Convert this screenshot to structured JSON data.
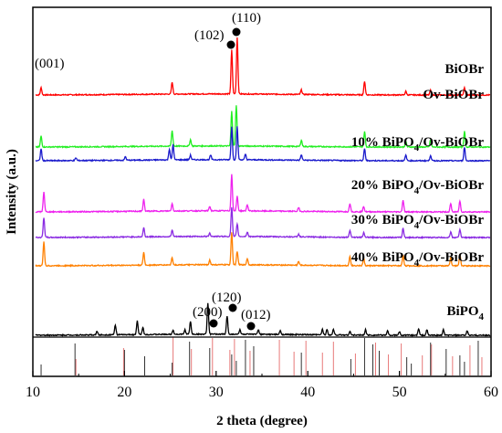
{
  "chart_data": {
    "type": "line",
    "xlabel": "2 theta (degree)",
    "ylabel": "Intensity (a.u.)",
    "xlim": [
      10,
      60
    ],
    "x_ticks": [
      10,
      20,
      30,
      40,
      50,
      60
    ],
    "y_ticks_shown": false,
    "grid": false,
    "series": [
      {
        "name": "BiOBr",
        "color": "#ff0000",
        "peaks": [
          [
            10.9,
            8
          ],
          [
            25.2,
            13
          ],
          [
            31.7,
            48
          ],
          [
            32.3,
            62
          ],
          [
            39.3,
            5
          ],
          [
            46.2,
            15
          ],
          [
            50.7,
            4
          ],
          [
            53.4,
            5
          ],
          [
            57.1,
            8
          ]
        ]
      },
      {
        "name": "Ov-BiOBr",
        "color": "#22ee22",
        "peaks": [
          [
            10.9,
            12
          ],
          [
            25.2,
            17
          ],
          [
            27.2,
            7
          ],
          [
            31.7,
            38
          ],
          [
            32.2,
            45
          ],
          [
            39.3,
            7
          ],
          [
            46.2,
            17
          ],
          [
            50.7,
            6
          ],
          [
            53.4,
            8
          ],
          [
            57.1,
            17
          ]
        ]
      },
      {
        "name": "10% BiPO",
        "sub": "4",
        "suffix": "/Ov-BiOBr",
        "color": "#1a1acc",
        "peaks": [
          [
            10.9,
            13
          ],
          [
            14.7,
            3
          ],
          [
            20.1,
            4
          ],
          [
            24.9,
            12
          ],
          [
            25.3,
            17
          ],
          [
            27.2,
            5
          ],
          [
            29.4,
            5
          ],
          [
            31.7,
            36
          ],
          [
            32.3,
            36
          ],
          [
            33.2,
            6
          ],
          [
            39.3,
            6
          ],
          [
            46.2,
            13
          ],
          [
            50.7,
            6
          ],
          [
            53.4,
            6
          ],
          [
            57.1,
            15
          ]
        ]
      },
      {
        "name": "20% BiPO",
        "sub": "4",
        "suffix": "/Ov-BiOBr",
        "color": "#ee22ee",
        "peaks": [
          [
            11.2,
            22
          ],
          [
            22.1,
            13
          ],
          [
            25.2,
            8
          ],
          [
            29.3,
            5
          ],
          [
            31.7,
            40
          ],
          [
            32.3,
            16
          ],
          [
            33.4,
            7
          ],
          [
            39.0,
            4
          ],
          [
            44.6,
            9
          ],
          [
            46.1,
            6
          ],
          [
            50.4,
            13
          ],
          [
            55.6,
            9
          ],
          [
            56.6,
            12
          ]
        ]
      },
      {
        "name": "30% BiPO",
        "sub": "4",
        "suffix": "/Ov-BiOBr",
        "color": "#8a2be2",
        "peaks": [
          [
            11.2,
            22
          ],
          [
            22.1,
            10
          ],
          [
            25.2,
            7
          ],
          [
            29.3,
            4
          ],
          [
            31.7,
            32
          ],
          [
            32.3,
            14
          ],
          [
            33.4,
            5
          ],
          [
            39.0,
            3
          ],
          [
            44.6,
            8
          ],
          [
            46.1,
            5
          ],
          [
            50.4,
            10
          ],
          [
            55.6,
            6
          ],
          [
            56.6,
            9
          ]
        ]
      },
      {
        "name": "40% BiPO",
        "sub": "4",
        "suffix": "/Ov-BiOBr",
        "color": "#ff8000",
        "peaks": [
          [
            11.2,
            26
          ],
          [
            22.1,
            14
          ],
          [
            25.2,
            8
          ],
          [
            29.3,
            5
          ],
          [
            31.7,
            36
          ],
          [
            32.3,
            15
          ],
          [
            33.4,
            7
          ],
          [
            39.0,
            4
          ],
          [
            44.6,
            10
          ],
          [
            46.1,
            8
          ],
          [
            50.4,
            12
          ],
          [
            55.6,
            9
          ],
          [
            56.6,
            13
          ]
        ]
      },
      {
        "name": "BiPO",
        "sub": "4",
        "suffix": "",
        "color": "#000000",
        "peaks": [
          [
            17.0,
            4
          ],
          [
            19.0,
            11
          ],
          [
            21.4,
            15
          ],
          [
            22.0,
            8
          ],
          [
            25.3,
            5
          ],
          [
            26.6,
            5
          ],
          [
            27.2,
            14
          ],
          [
            29.1,
            34
          ],
          [
            31.2,
            20
          ],
          [
            32.6,
            5
          ],
          [
            34.6,
            5
          ],
          [
            37.0,
            4
          ],
          [
            41.6,
            6
          ],
          [
            42.1,
            6
          ],
          [
            42.8,
            6
          ],
          [
            44.6,
            4
          ],
          [
            46.3,
            6
          ],
          [
            48.7,
            5
          ],
          [
            50.0,
            4
          ],
          [
            52.1,
            7
          ],
          [
            53.0,
            6
          ],
          [
            54.8,
            6
          ],
          [
            57.4,
            5
          ]
        ]
      }
    ],
    "annotations": [
      {
        "text": "(001)",
        "series": "BiOBr",
        "x": 10.9
      },
      {
        "text": "(102)",
        "series": "BiOBr",
        "x": 31.7
      },
      {
        "text": "(110)",
        "series": "BiOBr",
        "x": 32.3
      },
      {
        "text": "(200)",
        "series": "BiPO4",
        "x": 27.2
      },
      {
        "text": "(120)",
        "series": "BiPO4",
        "x": 29.1
      },
      {
        "text": "(012)",
        "series": "BiPO4",
        "x": 31.2
      }
    ],
    "reference_lines": {
      "black": [
        10.9,
        14.6,
        20.0,
        22.2,
        25.2,
        27.1,
        29.3,
        31.7,
        32.2,
        33.2,
        34.1,
        39.3,
        44.7,
        46.2,
        47.1,
        47.8,
        50.8,
        51.3,
        53.4,
        55.1,
        56.6,
        57.1,
        58.6
      ],
      "red": [
        14.7,
        19.9,
        25.3,
        27.3,
        29.6,
        31.5,
        32.0,
        33.7,
        36.9,
        38.5,
        39.8,
        41.6,
        42.8,
        45.2,
        47.4,
        48.8,
        50.2,
        52.5,
        53.5,
        55.8,
        57.7,
        59.0
      ]
    }
  }
}
